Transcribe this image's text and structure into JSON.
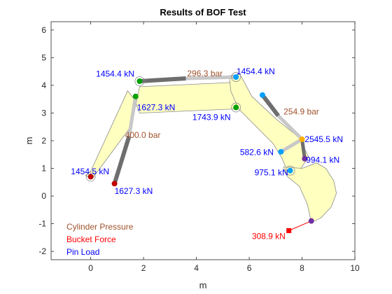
{
  "chart_data": {
    "type": "scatter",
    "title": "Results of BOF Test",
    "xlabel": "m",
    "ylabel": "m",
    "xlim": [
      -1.5,
      10
    ],
    "ylim": [
      -2.3,
      6.3
    ],
    "xticks": [
      0,
      2,
      4,
      6,
      8,
      10
    ],
    "yticks": [
      -2,
      -1,
      0,
      1,
      2,
      3,
      4,
      5,
      6
    ],
    "colors": {
      "body_fill": "#ffffc0",
      "body_edge": "#8c8c8c",
      "cyl_dark": "#6e6e6e",
      "cyl_light": "#c8c8c8",
      "pressure": "#a0522d",
      "bucket_force": "#ff0000",
      "pin_load": "#0000ff"
    },
    "bodies": [
      {
        "name": "boom",
        "points": [
          [
            -0.2,
            0.75
          ],
          [
            0.05,
            0.62
          ],
          [
            1.55,
            2.55
          ],
          [
            1.85,
            3.95
          ],
          [
            5.25,
            4.1
          ],
          [
            5.6,
            4.0
          ],
          [
            5.55,
            3.15
          ],
          [
            1.85,
            3.0
          ],
          [
            1.65,
            3.5
          ],
          [
            1.4,
            3.8
          ],
          [
            0.0,
            0.9
          ]
        ]
      },
      {
        "name": "stick",
        "points": [
          [
            5.25,
            4.35
          ],
          [
            5.65,
            4.4
          ],
          [
            6.1,
            3.6
          ],
          [
            7.0,
            2.8
          ],
          [
            7.9,
            2.1
          ],
          [
            8.25,
            1.4
          ],
          [
            7.8,
            0.8
          ],
          [
            7.5,
            0.75
          ],
          [
            7.25,
            1.35
          ],
          [
            6.9,
            1.9
          ],
          [
            5.6,
            3.15
          ],
          [
            5.3,
            3.8
          ]
        ]
      },
      {
        "name": "bucket",
        "points": [
          [
            7.3,
            1.05
          ],
          [
            8.0,
            1.0
          ],
          [
            8.55,
            1.2
          ],
          [
            8.9,
            1.0
          ],
          [
            9.2,
            0.55
          ],
          [
            9.3,
            0.1
          ],
          [
            9.1,
            -0.4
          ],
          [
            8.7,
            -0.8
          ],
          [
            8.35,
            -0.95
          ],
          [
            8.2,
            -0.3
          ],
          [
            7.9,
            0.35
          ],
          [
            7.45,
            0.7
          ]
        ]
      }
    ],
    "cylinders": [
      {
        "name": "boom-cylinder",
        "from": [
          0.9,
          0.45
        ],
        "to": [
          1.45,
          2.15
        ],
        "joint": [
          1.45,
          2.15
        ],
        "end": [
          1.7,
          3.6
        ]
      },
      {
        "name": "stick-cylinder",
        "from": [
          1.85,
          4.15
        ],
        "to": [
          3.6,
          4.25
        ],
        "joint": [
          3.6,
          4.25
        ],
        "end": [
          5.5,
          4.3
        ]
      },
      {
        "name": "bucket-cylinder",
        "from": [
          6.5,
          3.65
        ],
        "to": [
          7.1,
          2.9
        ],
        "joint": [
          7.1,
          2.9
        ],
        "end": [
          8.0,
          2.05
        ]
      },
      {
        "name": "bucket-link",
        "from": [
          8.0,
          2.05
        ],
        "to": [
          8.1,
          1.35
        ],
        "joint": null,
        "end": null
      },
      {
        "name": "bucket-link-2",
        "from": [
          7.2,
          1.6
        ],
        "to": [
          8.0,
          2.05
        ],
        "joint": null,
        "end": null
      }
    ],
    "pins": [
      {
        "name": "boom-foot",
        "x": 0.0,
        "y": 0.7,
        "color": "#c00000",
        "ring": true
      },
      {
        "name": "boom-cyl-base",
        "x": 0.9,
        "y": 0.45,
        "color": "#c00000",
        "ring": false
      },
      {
        "name": "boom-cyl-top",
        "x": 1.7,
        "y": 3.6,
        "color": "#00a000",
        "ring": false
      },
      {
        "name": "stick-cyl-base",
        "x": 1.85,
        "y": 4.15,
        "color": "#00a000",
        "ring": true
      },
      {
        "name": "boom-tip",
        "x": 5.5,
        "y": 3.2,
        "color": "#00a000",
        "ring": true
      },
      {
        "name": "stick-cyl-rod",
        "x": 5.5,
        "y": 4.3,
        "color": "#00a0ff",
        "ring": true
      },
      {
        "name": "bucket-cyl-base",
        "x": 6.5,
        "y": 3.65,
        "color": "#00a0ff",
        "ring": false
      },
      {
        "name": "bucket-cyl-rod",
        "x": 8.0,
        "y": 2.05,
        "color": "#ffb000",
        "ring": false
      },
      {
        "name": "link-pin",
        "x": 7.2,
        "y": 1.6,
        "color": "#00a0ff",
        "ring": false
      },
      {
        "name": "stick-tip",
        "x": 7.55,
        "y": 0.92,
        "color": "#00a0ff",
        "ring": true
      },
      {
        "name": "bucket-link-pin",
        "x": 8.1,
        "y": 1.35,
        "color": "#7030a0",
        "ring": false
      },
      {
        "name": "bucket-tip",
        "x": 8.35,
        "y": -0.9,
        "color": "#7030a0",
        "ring": false
      }
    ],
    "force": {
      "from": [
        8.35,
        -0.9
      ],
      "to": [
        7.5,
        -1.25
      ],
      "color": "#ff0000"
    },
    "labels": [
      {
        "name": "pressure-boom",
        "text": "400.0 bar",
        "x": 1.3,
        "y": 2.1,
        "color": "#a0522d",
        "anchor": "start"
      },
      {
        "name": "pressure-stick",
        "text": "296.3 bar",
        "x": 3.65,
        "y": 4.33,
        "color": "#a0522d",
        "anchor": "start"
      },
      {
        "name": "pressure-bucket",
        "text": "254.9 bar",
        "x": 7.3,
        "y": 2.95,
        "color": "#a0522d",
        "anchor": "start"
      },
      {
        "name": "pin-boom-foot",
        "text": "1454.5 kN",
        "x": -0.75,
        "y": 0.78,
        "color": "#0000ff",
        "anchor": "start"
      },
      {
        "name": "pin-boom-cyl-base",
        "text": "1627.3 kN",
        "x": 0.9,
        "y": 0.08,
        "color": "#0000ff",
        "anchor": "start"
      },
      {
        "name": "pin-boom-cyl-top",
        "text": "1627.3 kN",
        "x": 1.75,
        "y": 3.1,
        "color": "#0000ff",
        "anchor": "start"
      },
      {
        "name": "pin-stick-cyl-base",
        "text": "1454.4 kN",
        "x": 0.2,
        "y": 4.32,
        "color": "#0000ff",
        "anchor": "start"
      },
      {
        "name": "pin-boom-tip",
        "text": "1743.9 kN",
        "x": 3.85,
        "y": 2.75,
        "color": "#0000ff",
        "anchor": "start"
      },
      {
        "name": "pin-stick-cyl-rod",
        "text": "1454.4 kN",
        "x": 5.52,
        "y": 4.4,
        "color": "#0000ff",
        "anchor": "start"
      },
      {
        "name": "pin-bucket-cyl-rod",
        "text": "2545.5 kN",
        "x": 8.1,
        "y": 1.95,
        "color": "#0000ff",
        "anchor": "start"
      },
      {
        "name": "pin-link",
        "text": "582.6 kN",
        "x": 5.65,
        "y": 1.48,
        "color": "#0000ff",
        "anchor": "start"
      },
      {
        "name": "pin-bucket-link",
        "text": "994.1 kN",
        "x": 8.15,
        "y": 1.2,
        "color": "#0000ff",
        "anchor": "start"
      },
      {
        "name": "pin-stick-tip",
        "text": "975.1 kN",
        "x": 6.2,
        "y": 0.75,
        "color": "#0000ff",
        "anchor": "start"
      },
      {
        "name": "bucket-force-value",
        "text": "308.9 kN",
        "x": 6.1,
        "y": -1.55,
        "color": "#ff0000",
        "anchor": "start"
      }
    ],
    "legend": {
      "placement": "bottom-left",
      "items": [
        {
          "text": "Cylinder Pressure",
          "color": "#a0522d"
        },
        {
          "text": "Bucket Force",
          "color": "#ff0000"
        },
        {
          "text": "Pin Load",
          "color": "#0000ff"
        }
      ]
    }
  }
}
